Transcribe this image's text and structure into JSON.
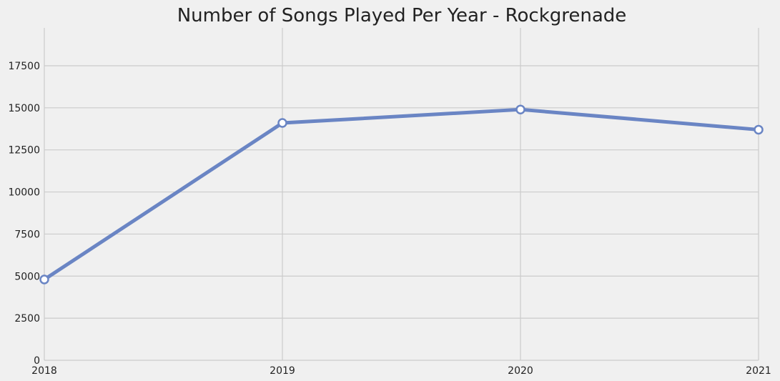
{
  "chart_data": {
    "type": "line",
    "title": "Number of Songs Played Per Year - Rockgrenade",
    "xlabel": "",
    "ylabel": "",
    "x": [
      2018,
      2019,
      2020,
      2021
    ],
    "x_tick_labels": [
      "2018",
      "2019",
      "2020",
      "2021"
    ],
    "y_tick_labels": [
      "0",
      "2500",
      "5000",
      "7500",
      "10000",
      "12500",
      "15000",
      "17500"
    ],
    "y_ticks": [
      0,
      2500,
      5000,
      7500,
      10000,
      12500,
      15000,
      17500
    ],
    "series": [
      {
        "values": [
          4800,
          14100,
          14900,
          13700
        ]
      }
    ],
    "xlim": [
      2018,
      2021
    ],
    "ylim": [
      0,
      19750
    ],
    "grid": true,
    "colors": {
      "line": "#6a85c4",
      "grid": "#cbcbcb",
      "background": "#f0f0f0",
      "marker_fill": "#ffffff"
    }
  }
}
